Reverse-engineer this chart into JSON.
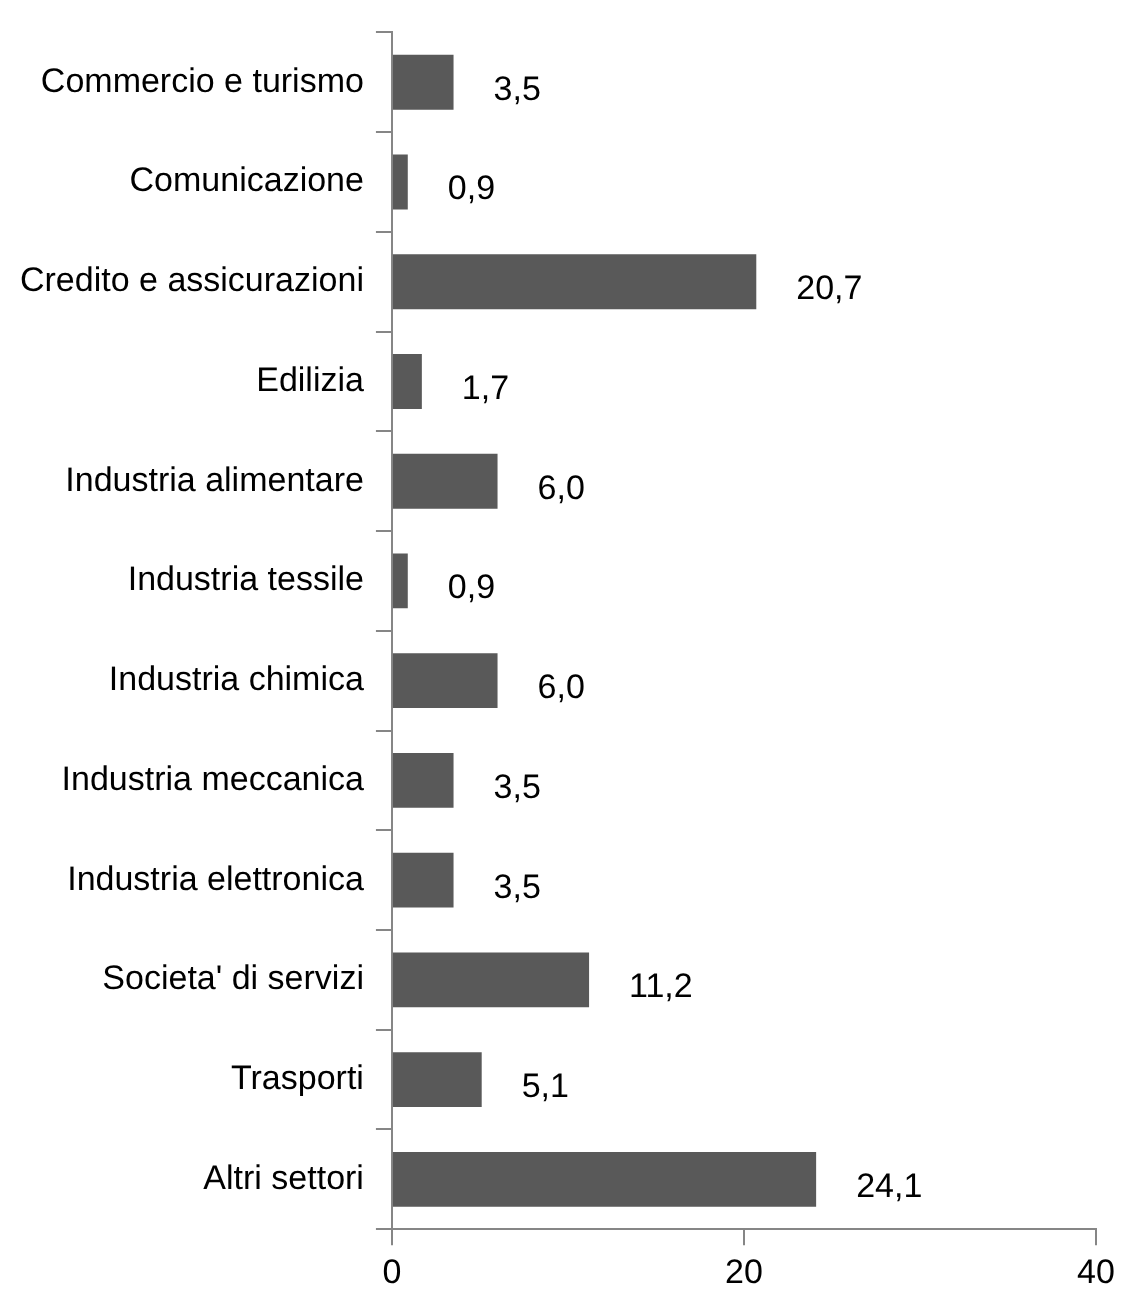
{
  "chart_data": {
    "type": "bar",
    "orientation": "horizontal",
    "categories": [
      "Commercio e turismo",
      "Comunicazione",
      "Credito e assicurazioni",
      "Edilizia",
      "Industria alimentare",
      "Industria tessile",
      "Industria chimica",
      "Industria meccanica",
      "Industria elettronica",
      "Societa' di servizi",
      "Trasporti",
      "Altri settori"
    ],
    "values": [
      3.5,
      0.9,
      20.7,
      1.7,
      6.0,
      0.9,
      6.0,
      3.5,
      3.5,
      11.2,
      5.1,
      24.1
    ],
    "value_labels": [
      "3,5",
      "0,9",
      "20,7",
      "1,7",
      "6,0",
      "0,9",
      "6,0",
      "3,5",
      "3,5",
      "11,2",
      "5,1",
      "24,1"
    ],
    "color": "#595959",
    "xlim": [
      0,
      40
    ],
    "xticks": [
      0,
      20,
      40
    ],
    "grid": false,
    "legend": false
  }
}
